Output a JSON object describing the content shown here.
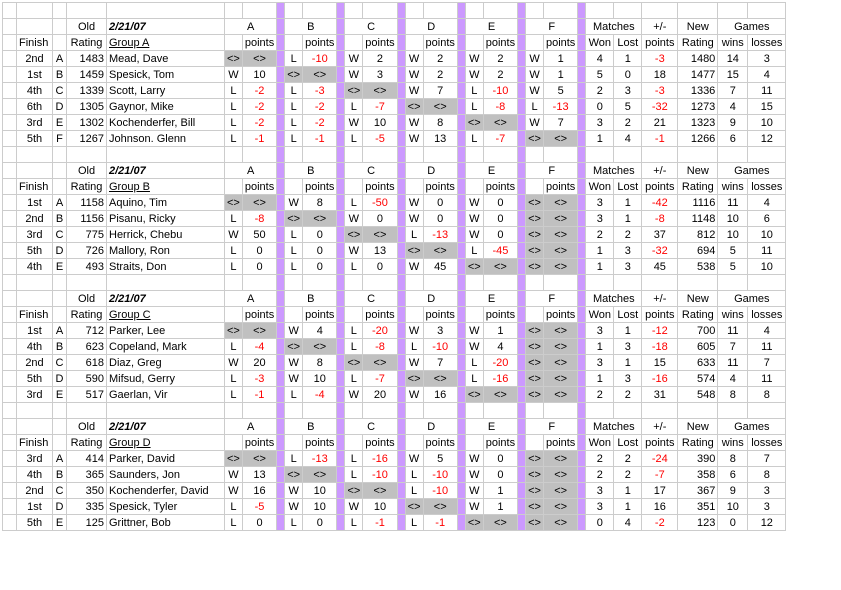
{
  "date": "2/21/07",
  "headers": {
    "old": "Old",
    "finish": "Finish",
    "rating": "Rating",
    "points": "points",
    "matches": "Matches",
    "plmi": "+/-",
    "new": "New",
    "games": "Games",
    "won": "Won",
    "lost": "Lost",
    "newrating": "Rating",
    "wins": "wins",
    "losses": "losses"
  },
  "opp_letters": [
    "A",
    "B",
    "C",
    "D",
    "E",
    "F"
  ],
  "groups": [
    {
      "title": "Group A",
      "players": [
        {
          "finish": "2nd",
          "pl": "A",
          "rating": 1483,
          "name": "Mead, Dave",
          "matches": [
            {
              "wl": "<>",
              "pts": "<>",
              "g": true
            },
            {
              "wl": "L",
              "pts": -10
            },
            {
              "wl": "W",
              "pts": 2
            },
            {
              "wl": "W",
              "pts": 2
            },
            {
              "wl": "W",
              "pts": 2
            },
            {
              "wl": "W",
              "pts": 1
            }
          ],
          "won": 4,
          "lost": 1,
          "pm": -3,
          "nr": 1480,
          "gw": 14,
          "gl": 3
        },
        {
          "finish": "1st",
          "pl": "B",
          "rating": 1459,
          "name": "Spesick, Tom",
          "matches": [
            {
              "wl": "W",
              "pts": 10
            },
            {
              "wl": "<>",
              "pts": "<>",
              "g": true
            },
            {
              "wl": "W",
              "pts": 3
            },
            {
              "wl": "W",
              "pts": 2
            },
            {
              "wl": "W",
              "pts": 2
            },
            {
              "wl": "W",
              "pts": 1
            }
          ],
          "won": 5,
          "lost": 0,
          "pm": 18,
          "nr": 1477,
          "gw": 15,
          "gl": 4
        },
        {
          "finish": "4th",
          "pl": "C",
          "rating": 1339,
          "name": "Scott, Larry",
          "matches": [
            {
              "wl": "L",
              "pts": -2
            },
            {
              "wl": "L",
              "pts": -3
            },
            {
              "wl": "<>",
              "pts": "<>",
              "g": true
            },
            {
              "wl": "W",
              "pts": 7
            },
            {
              "wl": "L",
              "pts": -10
            },
            {
              "wl": "W",
              "pts": 5
            }
          ],
          "won": 2,
          "lost": 3,
          "pm": -3,
          "nr": 1336,
          "gw": 7,
          "gl": 11
        },
        {
          "finish": "6th",
          "pl": "D",
          "rating": 1305,
          "name": "Gaynor, Mike",
          "matches": [
            {
              "wl": "L",
              "pts": -2
            },
            {
              "wl": "L",
              "pts": -2
            },
            {
              "wl": "L",
              "pts": -7
            },
            {
              "wl": "<>",
              "pts": "<>",
              "g": true
            },
            {
              "wl": "L",
              "pts": -8
            },
            {
              "wl": "L",
              "pts": -13
            }
          ],
          "won": 0,
          "lost": 5,
          "pm": -32,
          "nr": 1273,
          "gw": 4,
          "gl": 15
        },
        {
          "finish": "3rd",
          "pl": "E",
          "rating": 1302,
          "name": "Kochenderfer, Bill",
          "matches": [
            {
              "wl": "L",
              "pts": -2
            },
            {
              "wl": "L",
              "pts": -2
            },
            {
              "wl": "W",
              "pts": 10
            },
            {
              "wl": "W",
              "pts": 8
            },
            {
              "wl": "<>",
              "pts": "<>",
              "g": true
            },
            {
              "wl": "W",
              "pts": 7
            }
          ],
          "won": 3,
          "lost": 2,
          "pm": 21,
          "nr": 1323,
          "gw": 9,
          "gl": 10
        },
        {
          "finish": "5th",
          "pl": "F",
          "rating": 1267,
          "name": "Johnson. Glenn",
          "matches": [
            {
              "wl": "L",
              "pts": -1
            },
            {
              "wl": "L",
              "pts": -1
            },
            {
              "wl": "L",
              "pts": -5
            },
            {
              "wl": "W",
              "pts": 13
            },
            {
              "wl": "L",
              "pts": -7
            },
            {
              "wl": "<>",
              "pts": "<>",
              "g": true
            }
          ],
          "won": 1,
          "lost": 4,
          "pm": -1,
          "nr": 1266,
          "gw": 6,
          "gl": 12
        }
      ]
    },
    {
      "title": "Group B",
      "players": [
        {
          "finish": "1st",
          "pl": "A",
          "rating": 1158,
          "name": "Aquino, Tim",
          "matches": [
            {
              "wl": "<>",
              "pts": "<>",
              "g": true
            },
            {
              "wl": "W",
              "pts": 8
            },
            {
              "wl": "L",
              "pts": -50
            },
            {
              "wl": "W",
              "pts": 0
            },
            {
              "wl": "W",
              "pts": 0
            },
            {
              "wl": "<>",
              "pts": "<>",
              "g": true
            }
          ],
          "won": 3,
          "lost": 1,
          "pm": -42,
          "nr": 1116,
          "gw": 11,
          "gl": 4
        },
        {
          "finish": "2nd",
          "pl": "B",
          "rating": 1156,
          "name": "Pisanu, Ricky",
          "matches": [
            {
              "wl": "L",
              "pts": -8
            },
            {
              "wl": "<>",
              "pts": "<>",
              "g": true
            },
            {
              "wl": "W",
              "pts": 0
            },
            {
              "wl": "W",
              "pts": 0
            },
            {
              "wl": "W",
              "pts": 0
            },
            {
              "wl": "<>",
              "pts": "<>",
              "g": true
            }
          ],
          "won": 3,
          "lost": 1,
          "pm": -8,
          "nr": 1148,
          "gw": 10,
          "gl": 6
        },
        {
          "finish": "3rd",
          "pl": "C",
          "rating": 775,
          "name": "Herrick, Chebu",
          "matches": [
            {
              "wl": "W",
              "pts": 50
            },
            {
              "wl": "L",
              "pts": 0
            },
            {
              "wl": "<>",
              "pts": "<>",
              "g": true
            },
            {
              "wl": "L",
              "pts": -13
            },
            {
              "wl": "W",
              "pts": 0
            },
            {
              "wl": "<>",
              "pts": "<>",
              "g": true
            }
          ],
          "won": 2,
          "lost": 2,
          "pm": 37,
          "nr": 812,
          "gw": 10,
          "gl": 10
        },
        {
          "finish": "5th",
          "pl": "D",
          "rating": 726,
          "name": "Mallory, Ron",
          "matches": [
            {
              "wl": "L",
              "pts": 0
            },
            {
              "wl": "L",
              "pts": 0
            },
            {
              "wl": "W",
              "pts": 13
            },
            {
              "wl": "<>",
              "pts": "<>",
              "g": true
            },
            {
              "wl": "L",
              "pts": -45
            },
            {
              "wl": "<>",
              "pts": "<>",
              "g": true
            }
          ],
          "won": 1,
          "lost": 3,
          "pm": -32,
          "nr": 694,
          "gw": 5,
          "gl": 11
        },
        {
          "finish": "4th",
          "pl": "E",
          "rating": 493,
          "name": "Straits, Don",
          "matches": [
            {
              "wl": "L",
              "pts": 0
            },
            {
              "wl": "L",
              "pts": 0
            },
            {
              "wl": "L",
              "pts": 0
            },
            {
              "wl": "W",
              "pts": 45
            },
            {
              "wl": "<>",
              "pts": "<>",
              "g": true
            },
            {
              "wl": "<>",
              "pts": "<>",
              "g": true
            }
          ],
          "won": 1,
          "lost": 3,
          "pm": 45,
          "nr": 538,
          "gw": 5,
          "gl": 10
        }
      ]
    },
    {
      "title": "Group C",
      "players": [
        {
          "finish": "1st",
          "pl": "A",
          "rating": 712,
          "name": "Parker, Lee",
          "matches": [
            {
              "wl": "<>",
              "pts": "<>",
              "g": true
            },
            {
              "wl": "W",
              "pts": 4
            },
            {
              "wl": "L",
              "pts": -20
            },
            {
              "wl": "W",
              "pts": 3
            },
            {
              "wl": "W",
              "pts": 1
            },
            {
              "wl": "<>",
              "pts": "<>",
              "g": true
            }
          ],
          "won": 3,
          "lost": 1,
          "pm": -12,
          "nr": 700,
          "gw": 11,
          "gl": 4
        },
        {
          "finish": "4th",
          "pl": "B",
          "rating": 623,
          "name": "Copeland, Mark",
          "matches": [
            {
              "wl": "L",
              "pts": -4
            },
            {
              "wl": "<>",
              "pts": "<>",
              "g": true
            },
            {
              "wl": "L",
              "pts": -8
            },
            {
              "wl": "L",
              "pts": -10
            },
            {
              "wl": "W",
              "pts": 4
            },
            {
              "wl": "<>",
              "pts": "<>",
              "g": true
            }
          ],
          "won": 1,
          "lost": 3,
          "pm": -18,
          "nr": 605,
          "gw": 7,
          "gl": 11
        },
        {
          "finish": "2nd",
          "pl": "C",
          "rating": 618,
          "name": "Diaz, Greg",
          "matches": [
            {
              "wl": "W",
              "pts": 20
            },
            {
              "wl": "W",
              "pts": 8
            },
            {
              "wl": "<>",
              "pts": "<>",
              "g": true
            },
            {
              "wl": "W",
              "pts": 7
            },
            {
              "wl": "L",
              "pts": -20
            },
            {
              "wl": "<>",
              "pts": "<>",
              "g": true
            }
          ],
          "won": 3,
          "lost": 1,
          "pm": 15,
          "nr": 633,
          "gw": 11,
          "gl": 7
        },
        {
          "finish": "5th",
          "pl": "D",
          "rating": 590,
          "name": "Mifsud, Gerry",
          "matches": [
            {
              "wl": "L",
              "pts": -3
            },
            {
              "wl": "W",
              "pts": 10
            },
            {
              "wl": "L",
              "pts": -7
            },
            {
              "wl": "<>",
              "pts": "<>",
              "g": true
            },
            {
              "wl": "L",
              "pts": -16
            },
            {
              "wl": "<>",
              "pts": "<>",
              "g": true
            }
          ],
          "won": 1,
          "lost": 3,
          "pm": -16,
          "nr": 574,
          "gw": 4,
          "gl": 11
        },
        {
          "finish": "3rd",
          "pl": "E",
          "rating": 517,
          "name": "Gaerlan, Vir",
          "matches": [
            {
              "wl": "L",
              "pts": -1
            },
            {
              "wl": "L",
              "pts": -4
            },
            {
              "wl": "W",
              "pts": 20
            },
            {
              "wl": "W",
              "pts": 16
            },
            {
              "wl": "<>",
              "pts": "<>",
              "g": true
            },
            {
              "wl": "<>",
              "pts": "<>",
              "g": true
            }
          ],
          "won": 2,
          "lost": 2,
          "pm": 31,
          "nr": 548,
          "gw": 8,
          "gl": 8
        }
      ]
    },
    {
      "title": "Group D",
      "players": [
        {
          "finish": "3rd",
          "pl": "A",
          "rating": 414,
          "name": "Parker, David",
          "matches": [
            {
              "wl": "<>",
              "pts": "<>",
              "g": true
            },
            {
              "wl": "L",
              "pts": -13
            },
            {
              "wl": "L",
              "pts": -16
            },
            {
              "wl": "W",
              "pts": 5
            },
            {
              "wl": "W",
              "pts": 0
            },
            {
              "wl": "<>",
              "pts": "<>",
              "g": true
            }
          ],
          "won": 2,
          "lost": 2,
          "pm": -24,
          "nr": 390,
          "gw": 8,
          "gl": 7
        },
        {
          "finish": "4th",
          "pl": "B",
          "rating": 365,
          "name": "Saunders, Jon",
          "matches": [
            {
              "wl": "W",
              "pts": 13
            },
            {
              "wl": "<>",
              "pts": "<>",
              "g": true
            },
            {
              "wl": "L",
              "pts": -10
            },
            {
              "wl": "L",
              "pts": -10
            },
            {
              "wl": "W",
              "pts": 0
            },
            {
              "wl": "<>",
              "pts": "<>",
              "g": true
            }
          ],
          "won": 2,
          "lost": 2,
          "pm": -7,
          "nr": 358,
          "gw": 6,
          "gl": 8
        },
        {
          "finish": "2nd",
          "pl": "C",
          "rating": 350,
          "name": "Kochenderfer, David",
          "matches": [
            {
              "wl": "W",
              "pts": 16
            },
            {
              "wl": "W",
              "pts": 10
            },
            {
              "wl": "<>",
              "pts": "<>",
              "g": true
            },
            {
              "wl": "L",
              "pts": -10
            },
            {
              "wl": "W",
              "pts": 1
            },
            {
              "wl": "<>",
              "pts": "<>",
              "g": true
            }
          ],
          "won": 3,
          "lost": 1,
          "pm": 17,
          "nr": 367,
          "gw": 9,
          "gl": 3
        },
        {
          "finish": "1st",
          "pl": "D",
          "rating": 335,
          "name": "Spesick, Tyler",
          "matches": [
            {
              "wl": "L",
              "pts": -5
            },
            {
              "wl": "W",
              "pts": 10
            },
            {
              "wl": "W",
              "pts": 10
            },
            {
              "wl": "<>",
              "pts": "<>",
              "g": true
            },
            {
              "wl": "W",
              "pts": 1
            },
            {
              "wl": "<>",
              "pts": "<>",
              "g": true
            }
          ],
          "won": 3,
          "lost": 1,
          "pm": 16,
          "nr": 351,
          "gw": 10,
          "gl": 3
        },
        {
          "finish": "5th",
          "pl": "E",
          "rating": 125,
          "name": "Grittner, Bob",
          "matches": [
            {
              "wl": "L",
              "pts": 0
            },
            {
              "wl": "L",
              "pts": 0
            },
            {
              "wl": "L",
              "pts": -1
            },
            {
              "wl": "L",
              "pts": -1
            },
            {
              "wl": "<>",
              "pts": "<>",
              "g": true
            },
            {
              "wl": "<>",
              "pts": "<>",
              "g": true
            }
          ],
          "won": 0,
          "lost": 4,
          "pm": -2,
          "nr": 123,
          "gw": 0,
          "gl": 12
        }
      ]
    }
  ]
}
